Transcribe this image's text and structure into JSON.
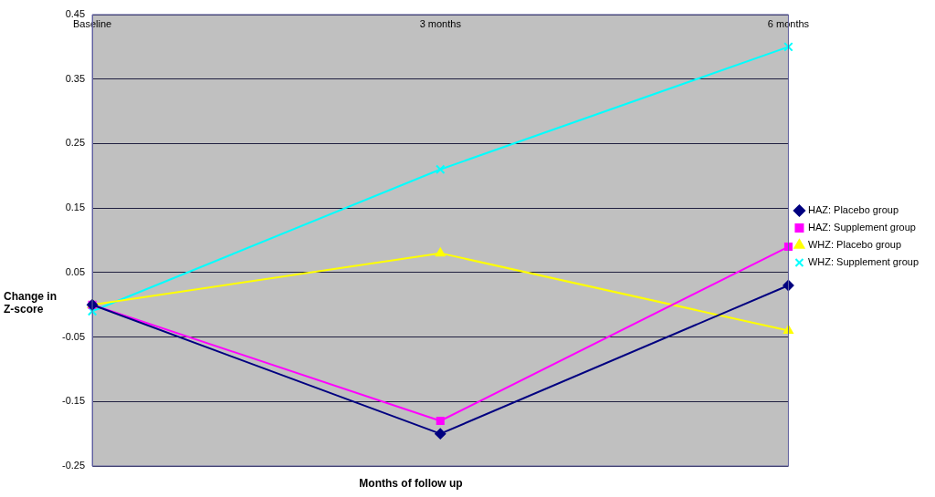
{
  "chart_data": {
    "type": "line",
    "xlabel": "Months of follow up",
    "ylabel": "Change in Z-score",
    "categories": [
      "Baseline",
      "3 months",
      "6 months"
    ],
    "series": [
      {
        "name": "HAZ: Placebo group",
        "color": "#000080",
        "marker": "diamond",
        "values": [
          0,
          -0.2,
          0.03
        ]
      },
      {
        "name": "HAZ: Supplement group",
        "color": "#ff00ff",
        "marker": "square",
        "values": [
          0,
          -0.18,
          0.09
        ]
      },
      {
        "name": "WHZ: Placebo group",
        "color": "#ffff00",
        "marker": "triangle",
        "values": [
          0,
          0.08,
          -0.04
        ]
      },
      {
        "name": "WHZ: Supplement group",
        "color": "#00ffff",
        "marker": "cross",
        "values": [
          -0.01,
          0.21,
          0.4
        ]
      }
    ],
    "ylim": [
      -0.25,
      0.45
    ],
    "yticks": [
      -0.25,
      -0.15,
      -0.05,
      0.05,
      0.15,
      0.25,
      0.35,
      0.45
    ],
    "grid": "y",
    "legend": "right",
    "line_style": "solid"
  }
}
